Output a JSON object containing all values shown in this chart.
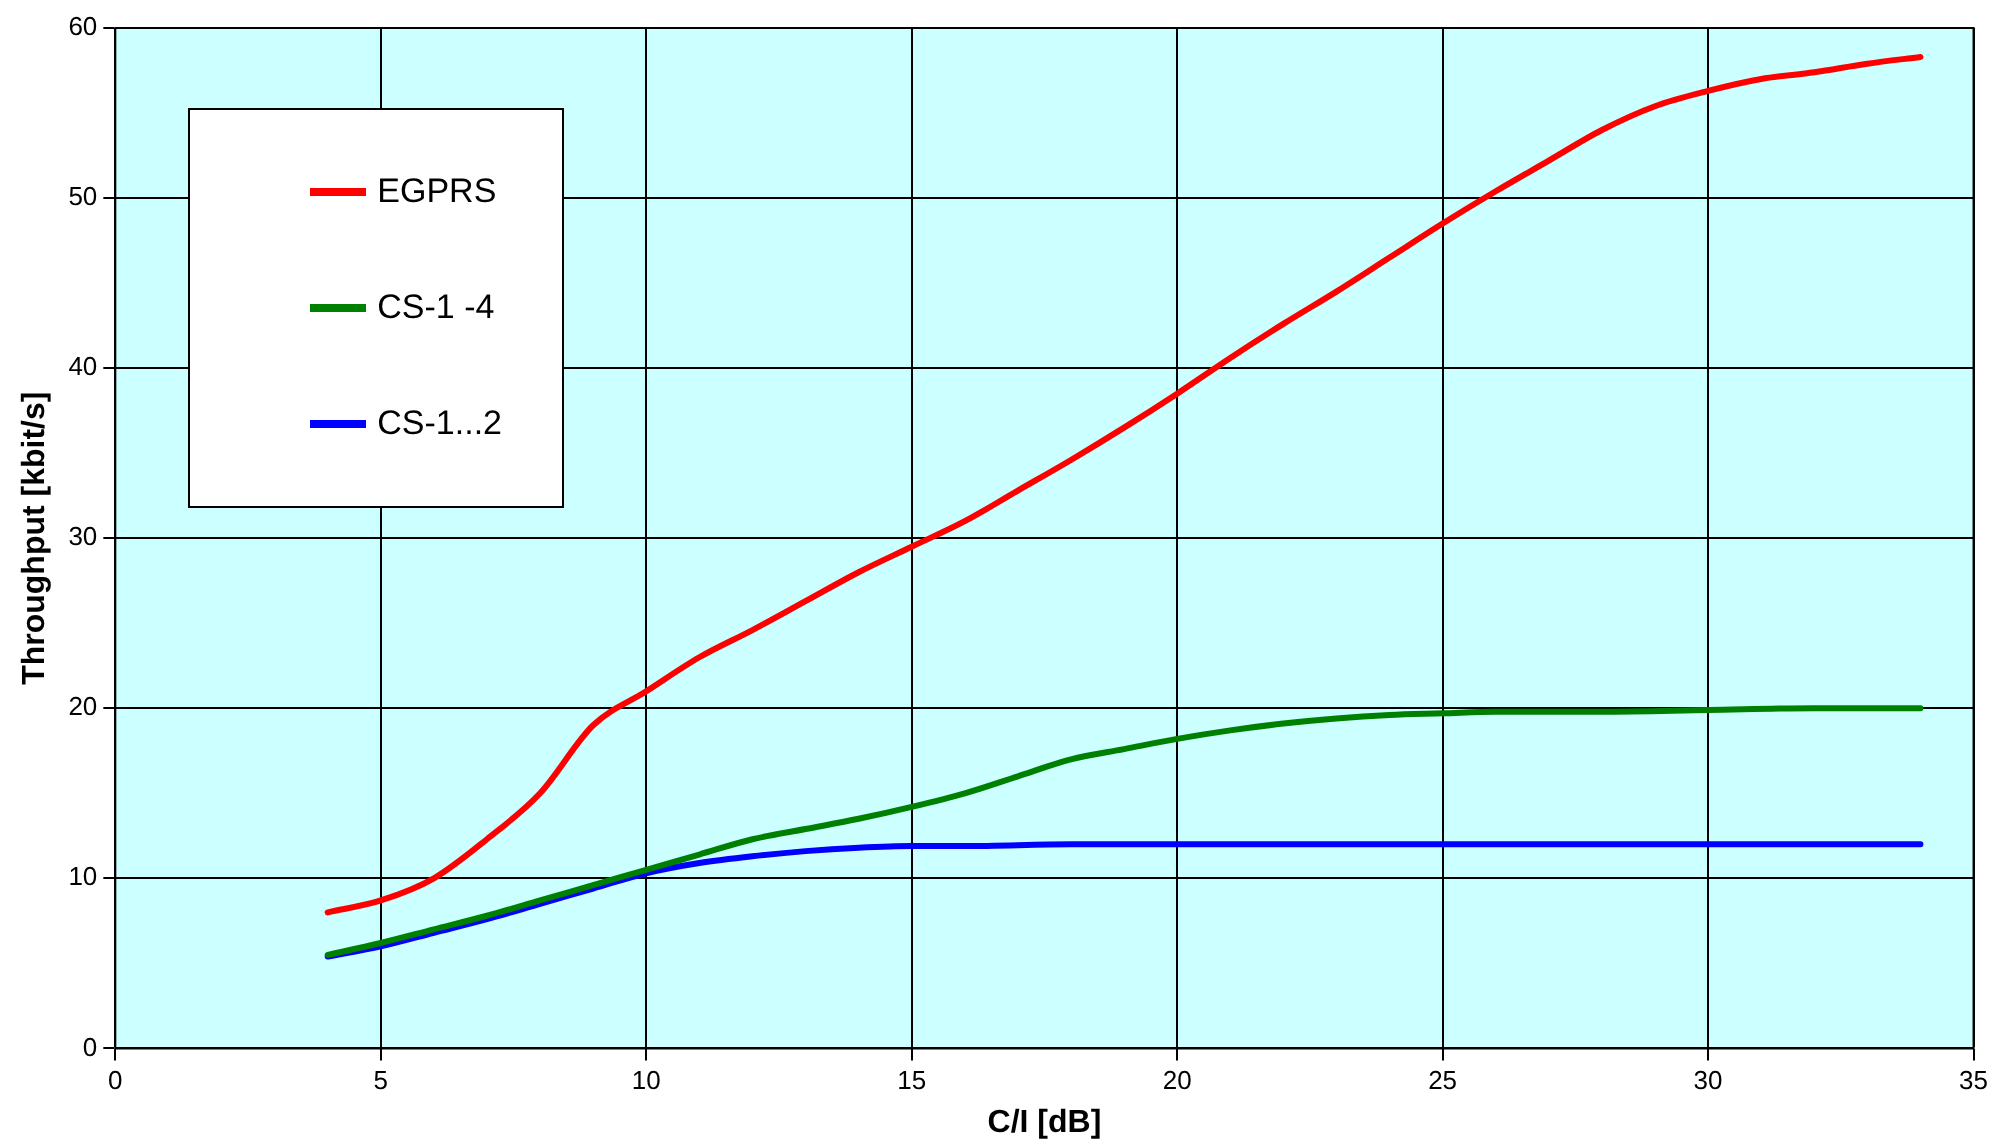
{
  "chart_data": {
    "type": "line",
    "xlabel": "C/I [dB]",
    "ylabel": "Throughput [kbit/s]",
    "xlim": [
      0,
      35
    ],
    "xticks": [
      0,
      5,
      10,
      15,
      20,
      25,
      30,
      35
    ],
    "ylim": [
      0,
      60
    ],
    "yticks": [
      0,
      10,
      20,
      30,
      40,
      50,
      60
    ],
    "grid": true,
    "legend": "top left",
    "marker": "none",
    "line_style": "solid",
    "series": [
      {
        "name": "EGPRS",
        "color": "#ff0000",
        "x": [
          4,
          5,
          6,
          7,
          8,
          9,
          10,
          11,
          12,
          13,
          14,
          15,
          16,
          17,
          18,
          19,
          20,
          21,
          22,
          23,
          24,
          25,
          26,
          27,
          28,
          29,
          30,
          31,
          32,
          33,
          34
        ],
        "values": [
          8,
          8.7,
          10,
          12.3,
          15,
          19,
          21,
          23,
          24.6,
          26.3,
          28,
          29.5,
          31,
          32.8,
          34.6,
          36.5,
          38.5,
          40.6,
          42.6,
          44.5,
          46.5,
          48.5,
          50.4,
          52.2,
          54,
          55.4,
          56.3,
          57,
          57.4,
          57.9,
          58.3
        ]
      },
      {
        "name": "CS-1 -4",
        "color": "#008000",
        "x": [
          4,
          5,
          6,
          7,
          8,
          9,
          10,
          11,
          12,
          13,
          14,
          15,
          16,
          17,
          18,
          19,
          20,
          21,
          22,
          23,
          24,
          25,
          26,
          28,
          30,
          32,
          34
        ],
        "values": [
          5.5,
          6.2,
          7,
          7.8,
          8.7,
          9.6,
          10.5,
          11.4,
          12.3,
          12.9,
          13.5,
          14.2,
          15,
          16,
          17,
          17.6,
          18.2,
          18.7,
          19.1,
          19.4,
          19.6,
          19.7,
          19.8,
          19.8,
          19.9,
          20,
          20
        ]
      },
      {
        "name": "CS-1...2",
        "color": "#0000ff",
        "x": [
          4,
          5,
          6,
          7,
          8,
          9,
          10,
          11,
          12,
          13,
          14,
          15,
          16,
          18,
          34
        ],
        "values": [
          5.4,
          6,
          6.8,
          7.6,
          8.5,
          9.4,
          10.3,
          10.9,
          11.3,
          11.6,
          11.8,
          11.9,
          11.9,
          12,
          12
        ]
      }
    ]
  }
}
